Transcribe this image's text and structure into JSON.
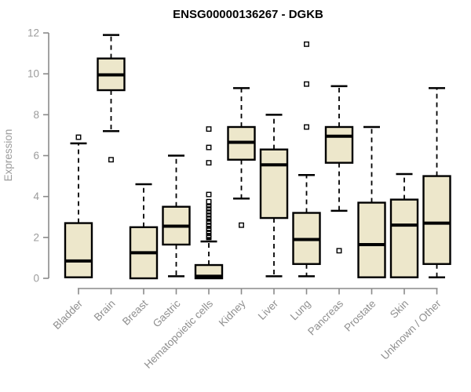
{
  "chart_data": {
    "type": "boxplot",
    "title": "ENSG00000136267 - DGKB",
    "ylabel": "Expression",
    "xlabel": "",
    "ylim": [
      0,
      12
    ],
    "yticks": [
      0,
      2,
      4,
      6,
      8,
      10,
      12
    ],
    "grid": "off",
    "legend": "none",
    "categories": [
      "Bladder",
      "Brain",
      "Breast",
      "Gastric",
      "Hematopoietic cells",
      "Kidney",
      "Liver",
      "Lung",
      "Pancreas",
      "Prostate",
      "Skin",
      "Unknown / Other"
    ],
    "boxes": [
      {
        "category": "Bladder",
        "whisker_low": 0.05,
        "q1": 0.05,
        "median": 0.85,
        "q3": 2.7,
        "whisker_high": 6.6,
        "outliers": [
          6.9
        ]
      },
      {
        "category": "Brain",
        "whisker_low": 7.2,
        "q1": 9.2,
        "median": 9.95,
        "q3": 10.75,
        "whisker_high": 11.9,
        "outliers": [
          5.8
        ]
      },
      {
        "category": "Breast",
        "whisker_low": 0.0,
        "q1": 0.0,
        "median": 1.25,
        "q3": 2.5,
        "whisker_high": 4.6,
        "outliers": []
      },
      {
        "category": "Gastric",
        "whisker_low": 0.1,
        "q1": 1.65,
        "median": 2.55,
        "q3": 3.5,
        "whisker_high": 6.0,
        "outliers": []
      },
      {
        "category": "Hematopoietic cells",
        "whisker_low": 0.0,
        "q1": 0.0,
        "median": 0.1,
        "q3": 0.65,
        "whisker_high": 1.8,
        "outliers": [
          2.0,
          2.05,
          2.1,
          2.2,
          2.25,
          2.3,
          2.4,
          2.45,
          2.55,
          2.6,
          2.65,
          2.75,
          2.8,
          2.9,
          2.95,
          3.0,
          3.1,
          3.15,
          3.25,
          3.3,
          3.4,
          3.45,
          3.55,
          3.6,
          3.7,
          3.75,
          4.1,
          5.65,
          6.4,
          7.3
        ]
      },
      {
        "category": "Kidney",
        "whisker_low": 3.9,
        "q1": 5.8,
        "median": 6.65,
        "q3": 7.4,
        "whisker_high": 9.3,
        "outliers": [
          2.6
        ]
      },
      {
        "category": "Liver",
        "whisker_low": 0.1,
        "q1": 2.95,
        "median": 5.55,
        "q3": 6.3,
        "whisker_high": 8.0,
        "outliers": []
      },
      {
        "category": "Lung",
        "whisker_low": 0.1,
        "q1": 0.7,
        "median": 1.9,
        "q3": 3.2,
        "whisker_high": 5.05,
        "outliers": [
          7.4,
          9.5,
          11.45
        ]
      },
      {
        "category": "Pancreas",
        "whisker_low": 3.3,
        "q1": 5.65,
        "median": 6.95,
        "q3": 7.4,
        "whisker_high": 9.4,
        "outliers": [
          1.35
        ]
      },
      {
        "category": "Prostate",
        "whisker_low": 0.05,
        "q1": 0.05,
        "median": 1.65,
        "q3": 3.7,
        "whisker_high": 7.4,
        "outliers": []
      },
      {
        "category": "Skin",
        "whisker_low": 0.05,
        "q1": 0.05,
        "median": 2.6,
        "q3": 3.85,
        "whisker_high": 5.1,
        "outliers": []
      },
      {
        "category": "Unknown / Other",
        "whisker_low": 0.05,
        "q1": 0.7,
        "median": 2.7,
        "q3": 5.0,
        "whisker_high": 9.3,
        "outliers": []
      }
    ],
    "colors": {
      "box_fill": "#EDE7CB",
      "box_stroke": "#000000",
      "median": "#000000",
      "whisker": "#000000",
      "outlier_stroke": "#000000",
      "axis_line": "#8a8a8a",
      "y_tick_label": "#9b9b9b",
      "x_tick_label": "#8f8f8f",
      "title": "#000000",
      "background": "#ffffff"
    }
  }
}
